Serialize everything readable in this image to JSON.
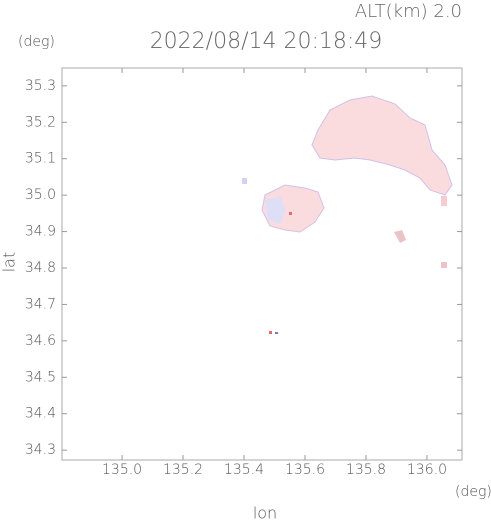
{
  "chart_data": {
    "type": "map",
    "title": "2022/08/14 20:18:49",
    "altitude_label": "ALT(km) 2.0",
    "xlabel": "lon",
    "ylabel": "lat",
    "xunit": "(deg)",
    "yunit": "(deg)",
    "xlim": [
      134.803,
      136.115
    ],
    "ylim": [
      34.273,
      35.349
    ],
    "xticks": [
      {
        "value": 135,
        "label": "135.0"
      },
      135.2,
      135.4,
      135.6,
      135.8,
      {
        "value": 136,
        "label": "136.0"
      }
    ],
    "yticks": [
      34.3,
      34.4,
      34.5,
      34.6,
      34.7,
      34.8,
      34.9,
      {
        "value": 35,
        "label": "35.0"
      },
      35.1,
      35.2,
      35.3
    ]
  }
}
